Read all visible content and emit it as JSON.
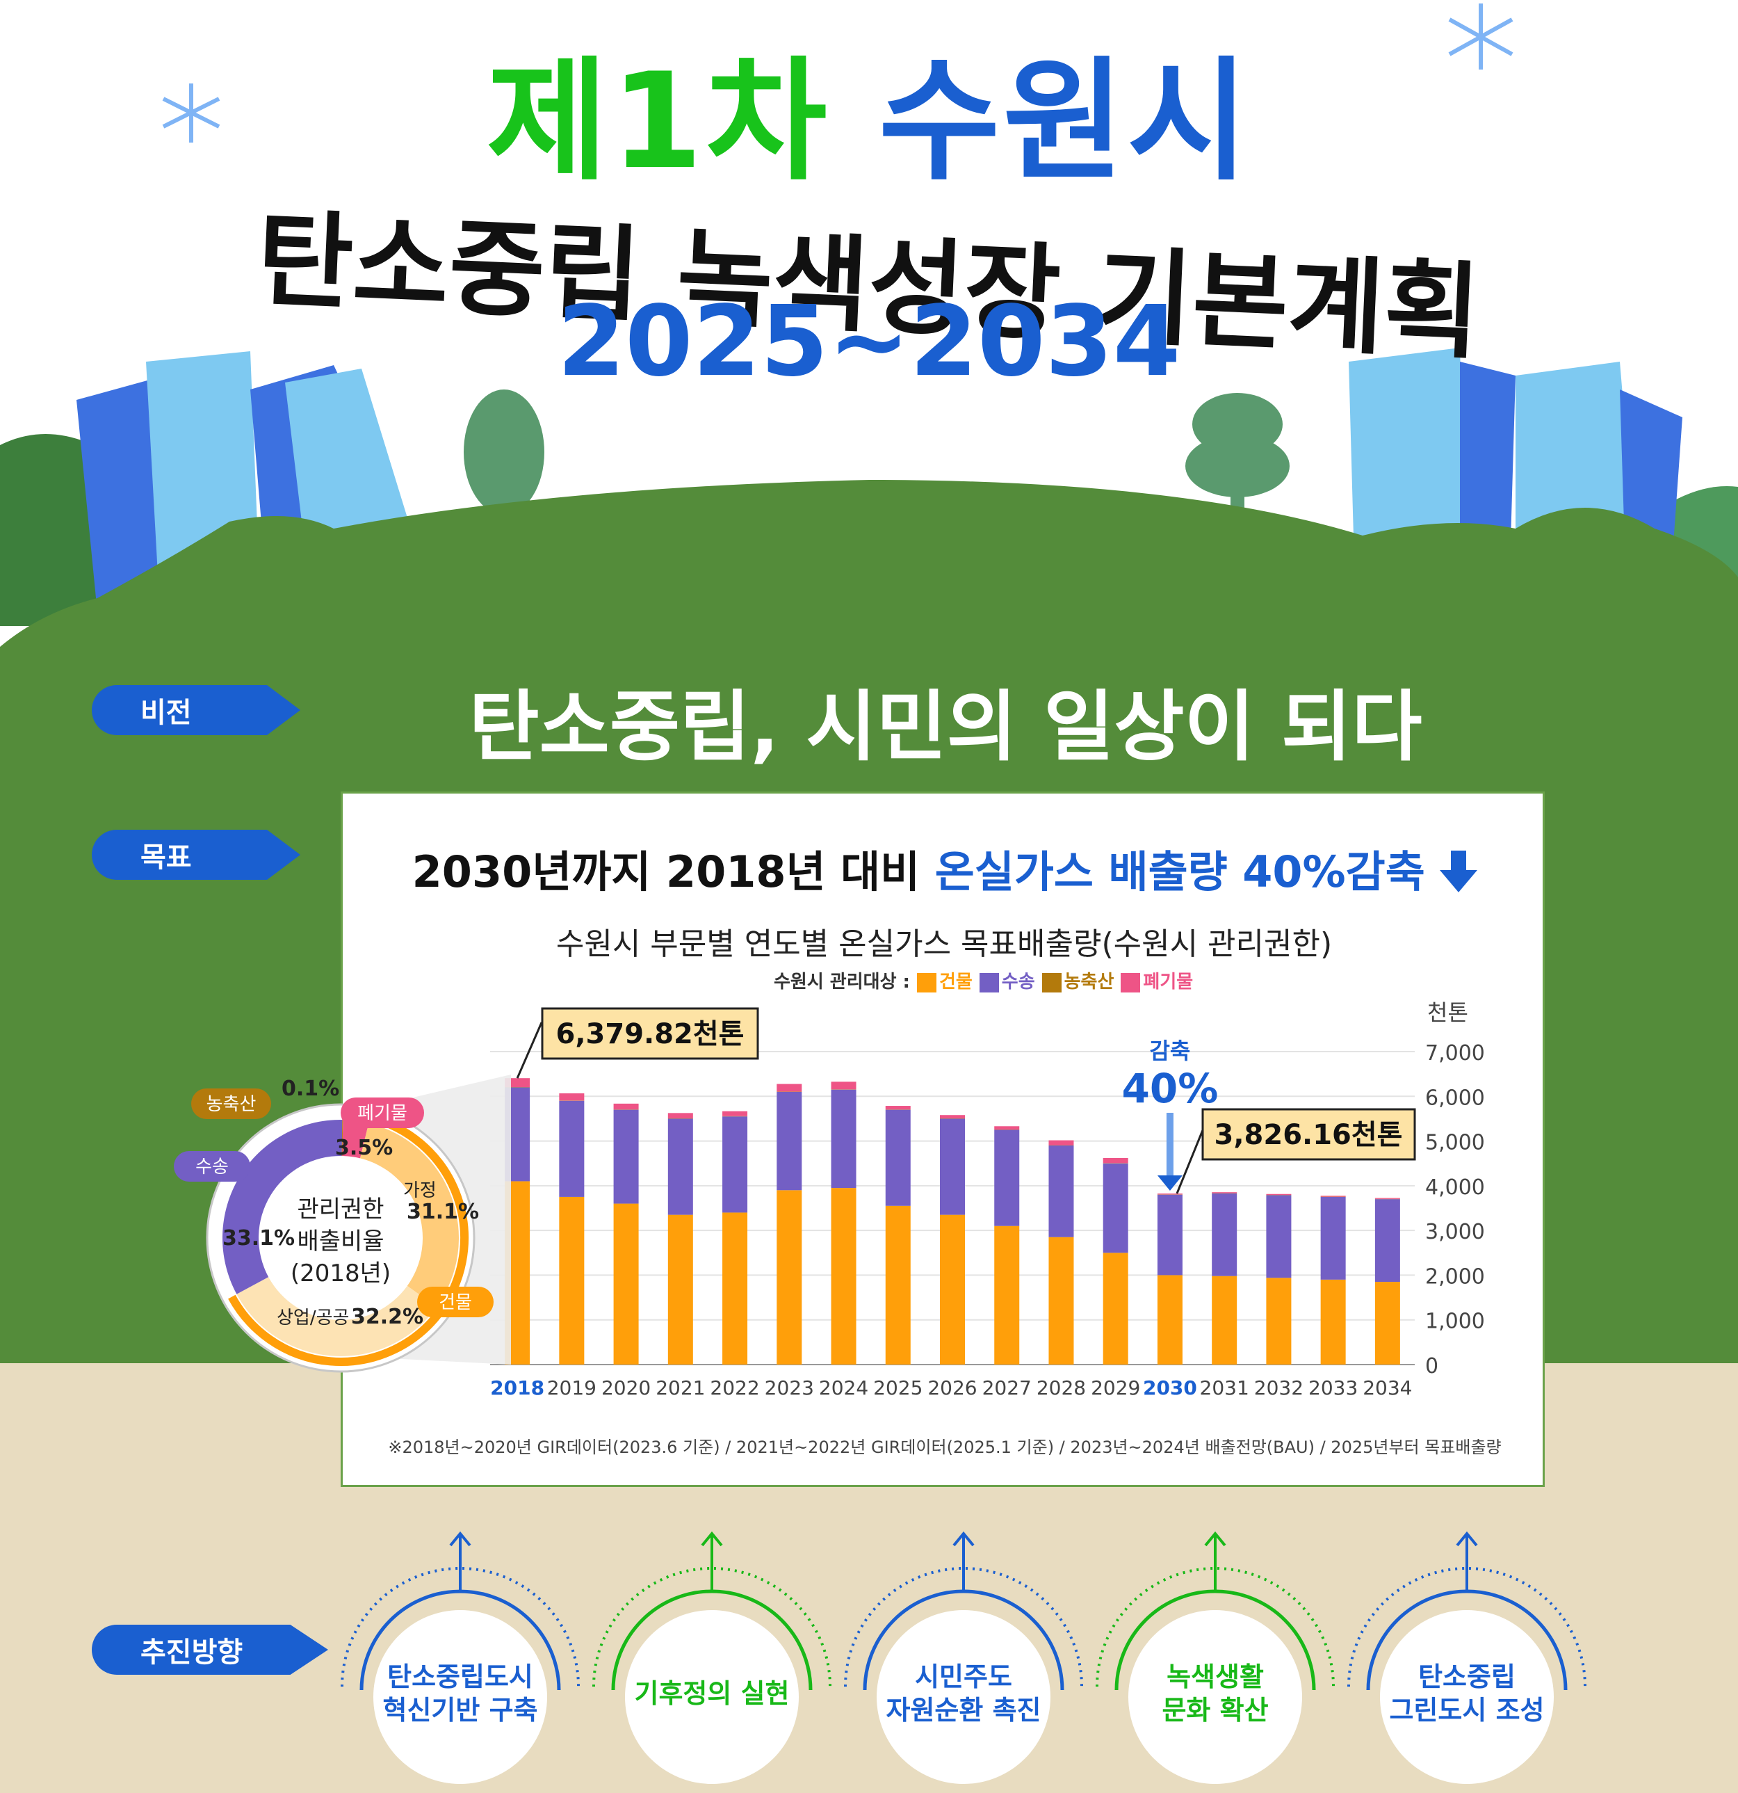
{
  "header": {
    "title_green": "제1차",
    "title_blue": "수원시",
    "subtitle": "탄소중립 녹색성장 기본계획",
    "period": "2025~2034"
  },
  "tags": {
    "vision": "비전",
    "goal": "목표",
    "direction": "추진방향"
  },
  "vision_text": "탄소중립, 시민의 일상이 되다",
  "goal": {
    "prefix": "2030년까지 2018년 대비 ",
    "highlight": "온실가스 배출량 40%감축"
  },
  "legend": {
    "label": "수원시 관리대상 :",
    "items": [
      {
        "name": "건물",
        "color": "#ff9f0a"
      },
      {
        "name": "수송",
        "color": "#735fc4"
      },
      {
        "name": "농축산",
        "color": "#b37a0c"
      },
      {
        "name": "폐기물",
        "color": "#ee5486"
      }
    ]
  },
  "annotations": {
    "callout_2018": "6,379.82천톤",
    "callout_2030": "3,826.16천톤",
    "reduction_label": "감축",
    "reduction_value": "40%"
  },
  "chart_data": [
    {
      "type": "bar",
      "stacked": true,
      "title": "수원시 부문별 연도별 온실가스 목표배출량(수원시 관리권한)",
      "unit": "천톤",
      "categories": [
        "2018",
        "2019",
        "2020",
        "2021",
        "2022",
        "2023",
        "2024",
        "2025",
        "2026",
        "2027",
        "2028",
        "2029",
        "2030",
        "2031",
        "2032",
        "2033",
        "2034"
      ],
      "highlight_categories": [
        "2018",
        "2030"
      ],
      "ylim": [
        0,
        7000
      ],
      "yticks": [
        "0",
        "1,000",
        "2,000",
        "3,000",
        "4,000",
        "5,000",
        "6,000",
        "7,000"
      ],
      "grid": true,
      "series": [
        {
          "name": "건물",
          "color": "#ff9f0a",
          "values": [
            4100,
            3750,
            3600,
            3350,
            3400,
            3900,
            3950,
            3550,
            3350,
            3100,
            2850,
            2500,
            2000,
            1980,
            1940,
            1900,
            1850
          ]
        },
        {
          "name": "수송",
          "color": "#735fc4",
          "values": [
            2100,
            2150,
            2100,
            2150,
            2150,
            2200,
            2200,
            2150,
            2150,
            2150,
            2050,
            2000,
            1800,
            1850,
            1850,
            1850,
            1850
          ]
        },
        {
          "name": "농축산",
          "color": "#b37a0c",
          "values": [
            6,
            6,
            6,
            6,
            6,
            6,
            6,
            6,
            6,
            6,
            6,
            6,
            5,
            5,
            5,
            5,
            5
          ]
        },
        {
          "name": "폐기물",
          "color": "#ee5486",
          "values": [
            200,
            160,
            130,
            120,
            110,
            170,
            170,
            80,
            75,
            75,
            110,
            115,
            20,
            20,
            20,
            20,
            20
          ]
        }
      ]
    },
    {
      "type": "pie",
      "title": "관리권한 배출비율 (2018년)",
      "center_label_lines": [
        "관리권한",
        "배출비율",
        "(2018년)"
      ],
      "slices": [
        {
          "name": "가정",
          "value": 31.1,
          "label": "31.1%",
          "color": "#ffcc7a"
        },
        {
          "name": "상업/공공",
          "value": 32.2,
          "label": "32.2%",
          "color": "#fde3b4"
        },
        {
          "name": "수송",
          "value": 33.1,
          "label": "33.1%",
          "color": "#735fc4"
        },
        {
          "name": "농축산",
          "value": 0.1,
          "label": "0.1%",
          "color": "#b37a0c"
        },
        {
          "name": "폐기물",
          "value": 3.5,
          "label": "3.5%",
          "color": "#ee5486"
        }
      ],
      "group_labels": [
        "건물",
        "수송",
        "농축산",
        "폐기물"
      ]
    }
  ],
  "footnote": "※2018년~2020년 GIR데이터(2023.6 기준) / 2021년~2022년 GIR데이터(2025.1 기준) / 2023년~2024년 배출전망(BAU) / 2025년부터 목표배출량",
  "directions": [
    {
      "lines": [
        "탄소중립도시",
        "혁신기반 구축"
      ],
      "color": "#1a5fd0"
    },
    {
      "lines": [
        "기후정의 실현"
      ],
      "color": "#18b818"
    },
    {
      "lines": [
        "시민주도",
        "자원순환 촉진"
      ],
      "color": "#1a5fd0"
    },
    {
      "lines": [
        "녹색생활",
        "문화 확산"
      ],
      "color": "#18b818"
    },
    {
      "lines": [
        "탄소중립",
        "그린도시 조성"
      ],
      "color": "#1a5fd0"
    }
  ]
}
